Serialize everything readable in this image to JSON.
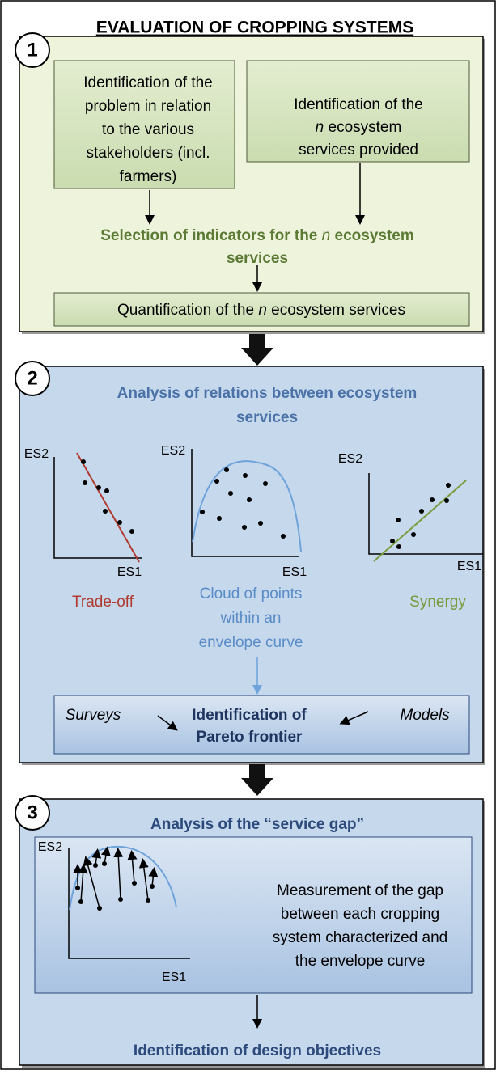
{
  "title": "EVALUATION OF CROPPING SYSTEMS",
  "section1": {
    "number": "1",
    "box_a": [
      "Identification of the",
      "problem in relation",
      "to the various",
      "stakeholders (incl.",
      "farmers)"
    ],
    "box_b": {
      "line1": "Identification of the",
      "line2_italic": "n",
      "line2": "ecosystem",
      "line3": "services provided"
    },
    "selection": {
      "part1": "Selection of indicators for the",
      "italic": "n",
      "part2": "ecosystem",
      "line2": "services"
    },
    "quantification": {
      "part1": "Quantification of  the",
      "italic": "n",
      "part2": "ecosystem services"
    }
  },
  "section2": {
    "number": "2",
    "heading": [
      "Analysis of relations between ecosystem",
      "services"
    ],
    "y_axis": "ES2",
    "x_axis": "ES1",
    "trade_off": "Trade-off",
    "cloud": [
      "Cloud of points",
      "within an",
      "envelope curve"
    ],
    "synergy": "Synergy",
    "surveys": "Surveys",
    "pareto": [
      "Identification of",
      "Pareto frontier"
    ],
    "models": "Models"
  },
  "section3": {
    "number": "3",
    "heading": "Analysis of the “service gap”",
    "y_axis": "ES2",
    "x_axis": "ES1",
    "measurement": [
      "Measurement of the gap",
      "between each cropping",
      "system characterized and",
      "the envelope curve"
    ],
    "objectives": "Identification of design objectives"
  }
}
